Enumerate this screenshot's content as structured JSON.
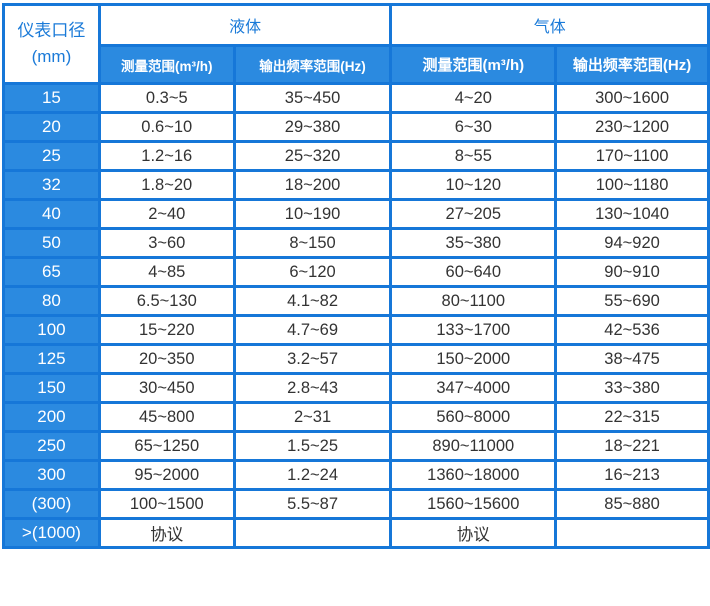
{
  "header": {
    "diameter_label": "仪表口径",
    "diameter_unit": "(mm)",
    "liquid": "液体",
    "gas": "气体",
    "liquid_range": "测量范围(m³/h)",
    "liquid_freq": "输出频率范围(Hz)",
    "gas_range": "测量范围(m³/h)",
    "gas_freq": "输出频率范围(Hz)"
  },
  "rows": [
    {
      "d": "15",
      "lr": "0.3~5",
      "lf": "35~450",
      "gr": "4~20",
      "gf": "300~1600"
    },
    {
      "d": "20",
      "lr": "0.6~10",
      "lf": "29~380",
      "gr": "6~30",
      "gf": "230~1200"
    },
    {
      "d": "25",
      "lr": "1.2~16",
      "lf": "25~320",
      "gr": "8~55",
      "gf": "170~1100"
    },
    {
      "d": "32",
      "lr": "1.8~20",
      "lf": "18~200",
      "gr": "10~120",
      "gf": "100~1180"
    },
    {
      "d": "40",
      "lr": "2~40",
      "lf": "10~190",
      "gr": "27~205",
      "gf": "130~1040"
    },
    {
      "d": "50",
      "lr": "3~60",
      "lf": "8~150",
      "gr": "35~380",
      "gf": "94~920"
    },
    {
      "d": "65",
      "lr": "4~85",
      "lf": "6~120",
      "gr": "60~640",
      "gf": "90~910"
    },
    {
      "d": "80",
      "lr": "6.5~130",
      "lf": "4.1~82",
      "gr": "80~1100",
      "gf": "55~690"
    },
    {
      "d": "100",
      "lr": "15~220",
      "lf": "4.7~69",
      "gr": "133~1700",
      "gf": "42~536"
    },
    {
      "d": "125",
      "lr": "20~350",
      "lf": "3.2~57",
      "gr": "150~2000",
      "gf": "38~475"
    },
    {
      "d": "150",
      "lr": "30~450",
      "lf": "2.8~43",
      "gr": "347~4000",
      "gf": "33~380"
    },
    {
      "d": "200",
      "lr": "45~800",
      "lf": "2~31",
      "gr": "560~8000",
      "gf": "22~315"
    },
    {
      "d": "250",
      "lr": "65~1250",
      "lf": "1.5~25",
      "gr": "890~11000",
      "gf": "18~221"
    },
    {
      "d": "300",
      "lr": "95~2000",
      "lf": "1.2~24",
      "gr": "1360~18000",
      "gf": "16~213"
    },
    {
      "d": "(300)",
      "lr": "100~1500",
      "lf": "5.5~87",
      "gr": "1560~15600",
      "gf": "85~880"
    },
    {
      "d": ">(1000)",
      "lr": "协议",
      "lf": "",
      "gr": "协议",
      "gf": ""
    }
  ],
  "colors": {
    "border": "#1677d8",
    "header_fill": "#2b8ae0",
    "header_text": "#1a7ad8"
  }
}
